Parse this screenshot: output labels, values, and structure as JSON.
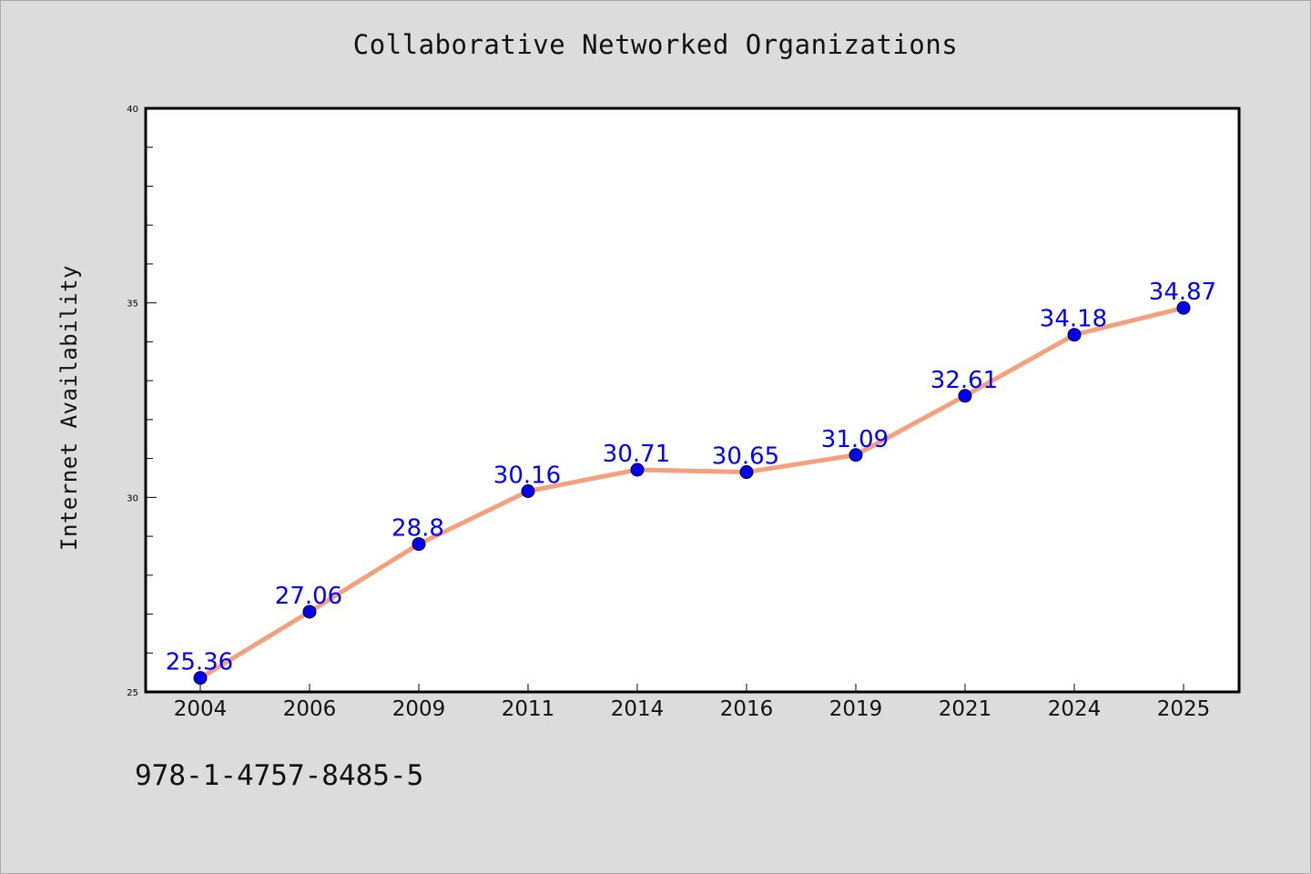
{
  "footer": {
    "code": "978-1-4757-8485-5"
  },
  "colors": {
    "background": "#dcdcdc",
    "plot_background": "#ffffff",
    "line": "#f4a07c",
    "marker": "#0000ee",
    "data_label": "#0000ff"
  },
  "chart_data": {
    "type": "line",
    "title": "Collaborative Networked Organizations",
    "xlabel": "",
    "ylabel": "Internet Availability",
    "categories": [
      "2004",
      "2006",
      "2009",
      "2011",
      "2014",
      "2016",
      "2019",
      "2021",
      "2024",
      "2025"
    ],
    "series": [
      {
        "values": [
          25.36,
          27.06,
          28.8,
          30.16,
          30.71,
          30.65,
          31.09,
          32.61,
          34.18,
          34.87
        ]
      }
    ],
    "data_labels": [
      "25.36",
      "27.06",
      "28.8",
      "30.16",
      "30.71",
      "30.65",
      "31.09",
      "32.61",
      "34.18",
      "34.87"
    ],
    "ylim": [
      25,
      40
    ],
    "yticks": [
      25,
      30,
      35,
      40
    ],
    "grid": false,
    "legend": "none",
    "markers": true
  }
}
